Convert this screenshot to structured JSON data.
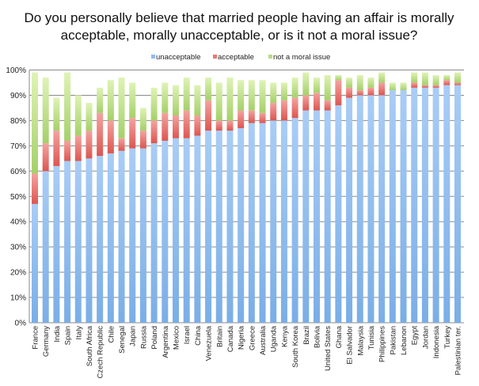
{
  "chart_data": {
    "type": "bar",
    "stacked": true,
    "title_lines": [
      "Do you personally believe that married people having an affair is morally",
      "acceptable, morally unacceptable, or is it not a moral issue?"
    ],
    "xlabel": "",
    "ylabel": "",
    "ylim": [
      0,
      100
    ],
    "yticks": [
      "0%",
      "10%",
      "20%",
      "30%",
      "40%",
      "50%",
      "60%",
      "70%",
      "80%",
      "90%",
      "100%"
    ],
    "grid": true,
    "legend_position": "top-center",
    "categories": [
      "France",
      "Germany",
      "India",
      "Spain",
      "Italy",
      "South Africa",
      "Czech Republic",
      "Chile",
      "Senegal",
      "Japan",
      "Russia",
      "Poland",
      "Argentina",
      "Mexico",
      "Israel",
      "China",
      "Venezuela",
      "Britain",
      "Canada",
      "Nigeria",
      "Greece",
      "Australia",
      "Uganda",
      "Kenya",
      "South Korea",
      "Brazil",
      "Bolivia",
      "United States",
      "Ghana",
      "El Salvador",
      "Malaysia",
      "Tunisia",
      "Philippines",
      "Pakistan",
      "Lebanon",
      "Egypt",
      "Jordan",
      "Indonesia",
      "Turkey",
      "Palestinian ter."
    ],
    "series": [
      {
        "name": "unacceptable",
        "color": "#8fbcef",
        "values": [
          47,
          60,
          62,
          64,
          64,
          65,
          66,
          67,
          68,
          69,
          69,
          71,
          72,
          73,
          73,
          74,
          76,
          76,
          76,
          77,
          79,
          79,
          80,
          80,
          81,
          84,
          84,
          84,
          86,
          89,
          90,
          90,
          90,
          92,
          92,
          93,
          93,
          93,
          94,
          94
        ]
      },
      {
        "name": "acceptable",
        "color": "#e97872",
        "values": [
          12,
          11,
          14,
          8,
          10,
          11,
          17,
          13,
          5,
          12,
          7,
          9,
          11,
          9,
          11,
          8,
          12,
          4,
          4,
          7,
          5,
          4,
          7,
          8,
          8,
          6,
          7,
          4,
          10,
          4,
          2,
          3,
          5,
          0,
          0,
          2,
          1,
          1,
          2,
          1
        ]
      },
      {
        "name": "not a moral issue",
        "color": "#b9dc82",
        "values": [
          40,
          26,
          13,
          27,
          16,
          11,
          10,
          16,
          24,
          14,
          9,
          13,
          12,
          12,
          13,
          12,
          9,
          15,
          17,
          12,
          12,
          13,
          8,
          7,
          8,
          9,
          6,
          10,
          2,
          4,
          6,
          4,
          4,
          3,
          3,
          4,
          5,
          4,
          2,
          4
        ]
      }
    ]
  }
}
